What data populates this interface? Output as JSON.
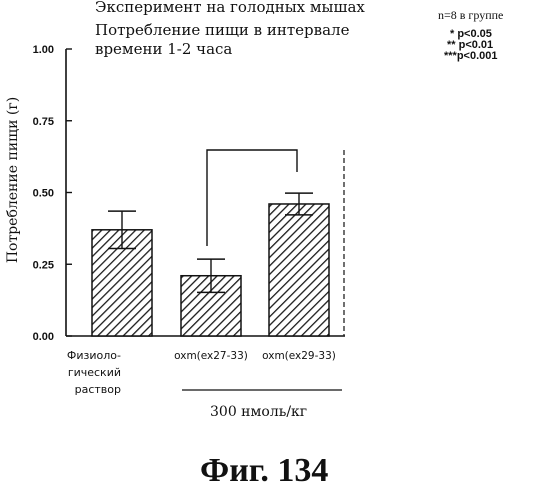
{
  "figure_label": "Фиг.  134",
  "chart_data": {
    "type": "bar",
    "title": [
      "Эксперимент на голодных мышах",
      "Потребление пищи в интервале",
      "времени 1-2 часа"
    ],
    "ylabel": "Потребление пищи (г)",
    "ylim": [
      0,
      1.0
    ],
    "yticks": [
      "0.00",
      "0.25",
      "0.50",
      "0.75",
      "1.00"
    ],
    "categories": [
      [
        "Физиоло-",
        "гический",
        "раствор"
      ],
      [
        "oxm(ex27-33)"
      ],
      [
        "oxm(ex29-33)"
      ]
    ],
    "values": [
      0.37,
      0.21,
      0.46
    ],
    "error_bars": [
      0.065,
      0.058,
      0.038
    ],
    "fill": "diagonal-hatch",
    "group_label": "300 нмоль/кг",
    "significance_bracket": {
      "between": [
        1,
        2
      ]
    },
    "legend": {
      "group_size": "n=8 в группе",
      "significance": [
        "* p<0.05",
        "** p<0.01",
        "***p<0.001"
      ]
    }
  }
}
